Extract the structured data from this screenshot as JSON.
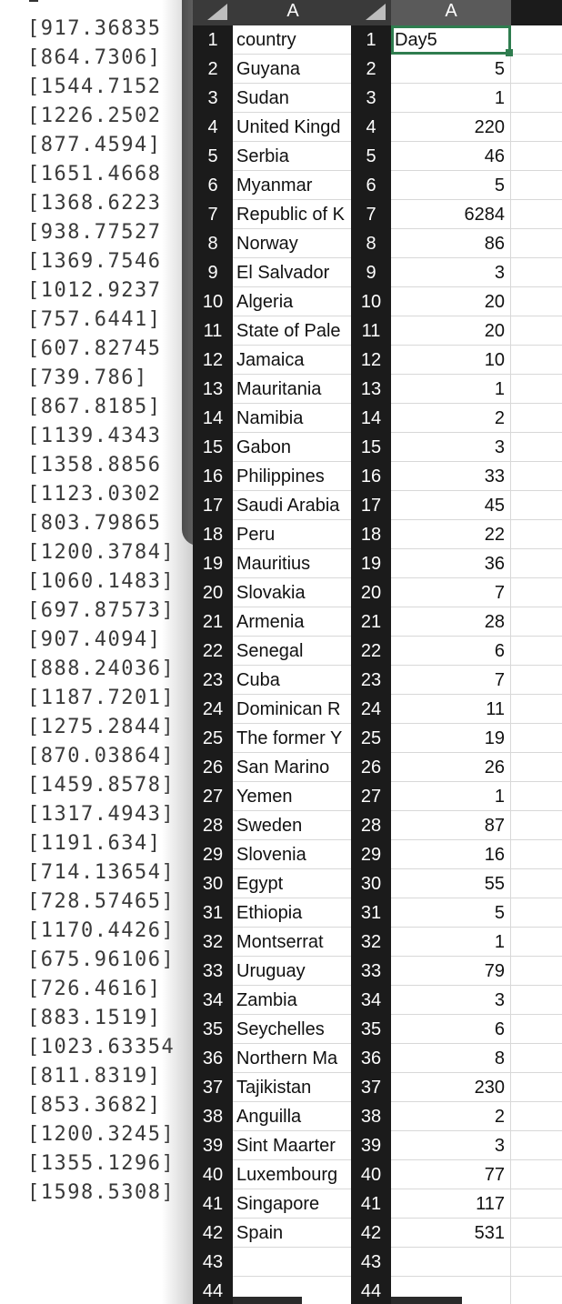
{
  "terminal_lines": [
    "[917.36835",
    "[864.7306]",
    "[1544.7152",
    "[1226.2502",
    "[877.4594]",
    "[1651.4668",
    "[1368.6223",
    "[938.77527",
    "[1369.7546",
    "[1012.9237",
    "[757.6441]",
    "[607.82745",
    "[739.786]",
    "[867.8185]",
    "[1139.4343",
    "[1358.8856",
    "[1123.0302",
    "[803.79865",
    "[1200.3784]",
    "[1060.1483]",
    "[697.87573]",
    "[907.4094]",
    "[888.24036]",
    "[1187.7201]",
    "[1275.2844]",
    "[870.03864]",
    "[1459.8578]",
    "[1317.4943]",
    "[1191.634]",
    "[714.13654]",
    "[728.57465]",
    "[1170.4426]",
    "[675.96106]",
    "[726.4616]",
    "[883.1519]",
    "[1023.63354",
    "[811.8319]",
    "[853.3682]",
    "[1200.3245]",
    "[1355.1296]",
    "[1598.5308]"
  ],
  "sheet1": {
    "column_header": "A",
    "rows": [
      "country",
      "Guyana",
      "Sudan",
      "United Kingd",
      "Serbia",
      "Myanmar",
      "Republic of K",
      "Norway",
      "El Salvador",
      "Algeria",
      "State of Pale",
      "Jamaica",
      "Mauritania",
      "Namibia",
      "Gabon",
      "Philippines",
      "Saudi Arabia",
      "Peru",
      "Mauritius",
      "Slovakia",
      "Armenia",
      "Senegal",
      "Cuba",
      "Dominican R",
      "The former Y",
      "San Marino",
      "Yemen",
      "Sweden",
      "Slovenia",
      "Egypt",
      "Ethiopia",
      "Montserrat",
      "Uruguay",
      "Zambia",
      "Seychelles",
      "Northern Ma",
      "Tajikistan",
      "Anguilla",
      "Sint Maarter",
      "Luxembourg",
      "Singapore",
      "Spain",
      "",
      ""
    ]
  },
  "sheet2": {
    "column_header": "A",
    "rows": [
      "Day5",
      "5",
      "1",
      "220",
      "46",
      "5",
      "6284",
      "86",
      "3",
      "20",
      "20",
      "10",
      "1",
      "2",
      "3",
      "33",
      "45",
      "22",
      "36",
      "7",
      "28",
      "6",
      "7",
      "11",
      "19",
      "26",
      "1",
      "87",
      "16",
      "55",
      "5",
      "1",
      "79",
      "3",
      "6",
      "8",
      "230",
      "2",
      "3",
      "77",
      "117",
      "531",
      "",
      ""
    ]
  }
}
